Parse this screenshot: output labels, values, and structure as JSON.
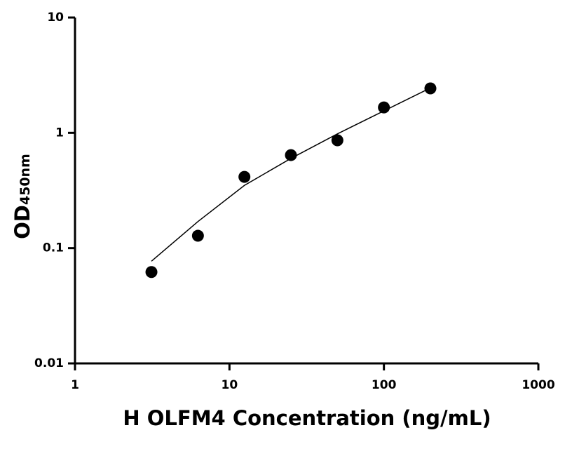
{
  "chart_data": {
    "type": "scatter",
    "x_label": "H OLFM4 Concentration (ng/mL)",
    "y_label": "OD",
    "y_label_sub": "450nm",
    "x_scale": "log",
    "y_scale": "log",
    "xlim": [
      1,
      1000
    ],
    "xticks": [
      1,
      10,
      100,
      1000
    ],
    "ylim": [
      0.01,
      10
    ],
    "yticks": [
      0.01,
      0.1,
      1,
      10
    ],
    "color": "#000000",
    "x": [
      3.125,
      6.25,
      12.5,
      25,
      50,
      100,
      200
    ],
    "values": [
      0.062,
      0.128,
      0.415,
      0.641,
      0.861,
      1.66,
      2.43
    ],
    "fit": {
      "x": [
        3.125,
        6.25,
        12.5,
        25,
        50,
        100,
        200
      ],
      "values": [
        0.077,
        0.17,
        0.35,
        0.6,
        0.98,
        1.55,
        2.45
      ]
    }
  }
}
